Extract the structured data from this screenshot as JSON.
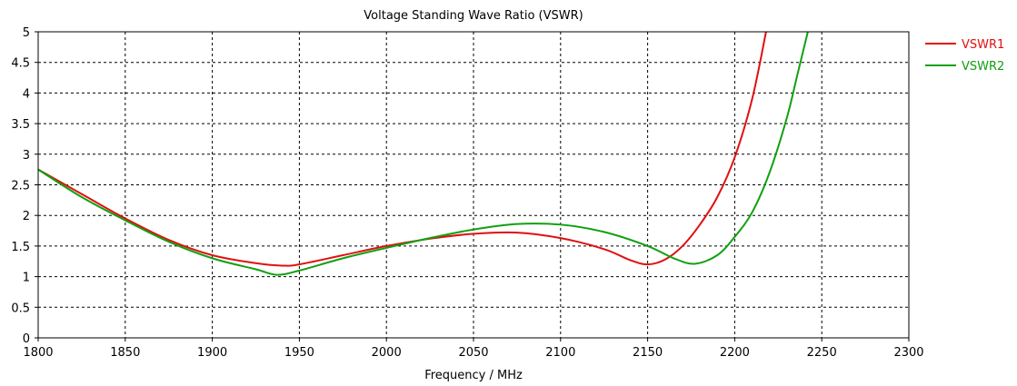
{
  "chart_data": {
    "type": "line",
    "title": "Voltage Standing Wave Ratio (VSWR)",
    "xlabel": "Frequency / MHz",
    "ylabel": "",
    "xlim": [
      1800,
      2300
    ],
    "ylim": [
      0,
      5
    ],
    "xticks": [
      "1800",
      "1850",
      "1900",
      "1950",
      "2000",
      "2050",
      "2100",
      "2150",
      "2200",
      "2250",
      "2300"
    ],
    "yticks": [
      "0",
      "0.5",
      "1",
      "1.5",
      "2",
      "2.5",
      "3",
      "3.5",
      "4",
      "4.5",
      "5"
    ],
    "grid": true,
    "legend": "top-right",
    "series": [
      {
        "name": "VSWR1",
        "color": "#e01010",
        "x": [
          1800,
          1825,
          1850,
          1875,
          1900,
          1925,
          1940,
          1950,
          1975,
          2000,
          2025,
          2050,
          2075,
          2100,
          2125,
          2140,
          2150,
          2160,
          2170,
          2180,
          2190,
          2200,
          2210,
          2218
        ],
        "y": [
          2.75,
          2.35,
          1.95,
          1.6,
          1.35,
          1.22,
          1.18,
          1.2,
          1.35,
          1.5,
          1.62,
          1.7,
          1.72,
          1.63,
          1.45,
          1.27,
          1.2,
          1.28,
          1.5,
          1.85,
          2.3,
          2.95,
          3.9,
          5.0
        ]
      },
      {
        "name": "VSWR2",
        "color": "#10a010",
        "x": [
          1800,
          1825,
          1850,
          1875,
          1900,
          1925,
          1937,
          1950,
          1975,
          2000,
          2025,
          2050,
          2075,
          2100,
          2125,
          2150,
          2165,
          2177,
          2190,
          2200,
          2210,
          2220,
          2230,
          2236,
          2242
        ],
        "y": [
          2.75,
          2.3,
          1.92,
          1.57,
          1.3,
          1.12,
          1.03,
          1.1,
          1.3,
          1.47,
          1.63,
          1.77,
          1.86,
          1.85,
          1.73,
          1.5,
          1.3,
          1.21,
          1.35,
          1.65,
          2.05,
          2.7,
          3.6,
          4.3,
          5.0
        ]
      }
    ]
  }
}
